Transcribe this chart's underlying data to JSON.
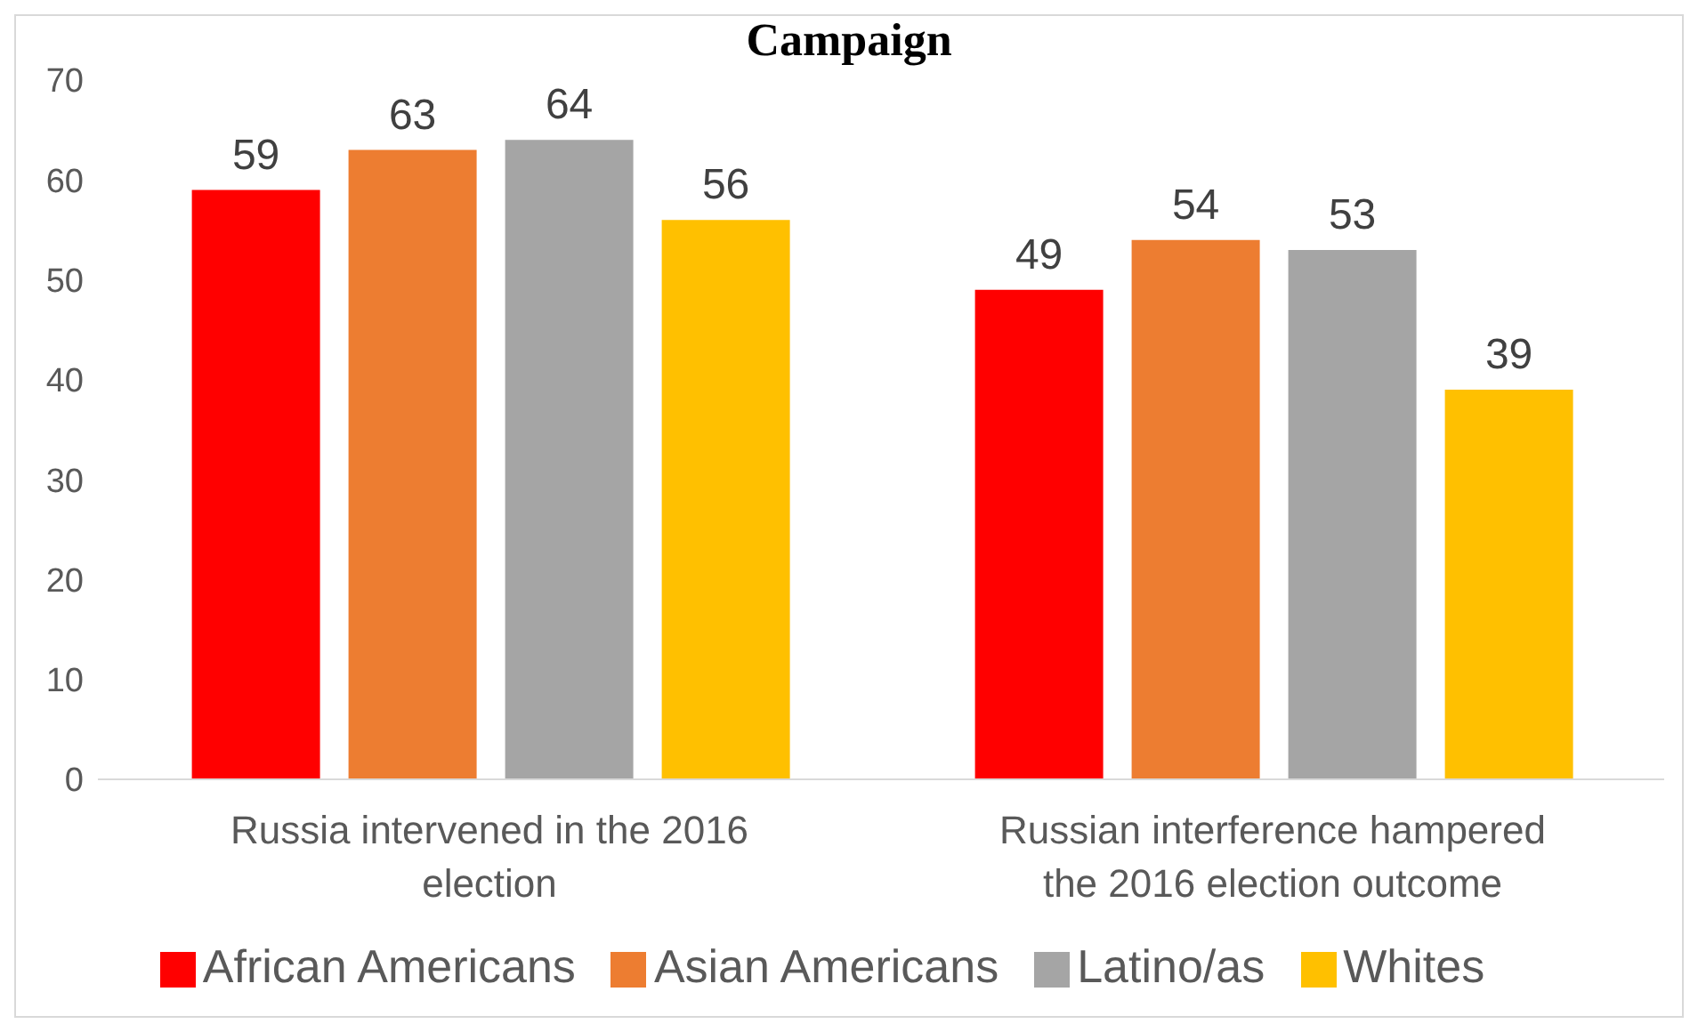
{
  "chart_data": {
    "type": "bar",
    "title": "Campaign",
    "categories": [
      "Russia intervened in the 2016 election",
      "Russian interference hampered the 2016 election outcome"
    ],
    "series": [
      {
        "name": "African Americans",
        "color": "#ff0000",
        "values": [
          59,
          49
        ]
      },
      {
        "name": "Asian Americans",
        "color": "#ed7d31",
        "values": [
          63,
          54
        ]
      },
      {
        "name": "Latino/as",
        "color": "#a5a5a5",
        "values": [
          64,
          53
        ]
      },
      {
        "name": "Whites",
        "color": "#ffc000",
        "values": [
          56,
          39
        ]
      }
    ],
    "ylim": [
      0,
      70
    ],
    "yticks": [
      0,
      10,
      20,
      30,
      40,
      50,
      60,
      70
    ],
    "grid": false,
    "legend": "bottom",
    "data_labels": true
  }
}
